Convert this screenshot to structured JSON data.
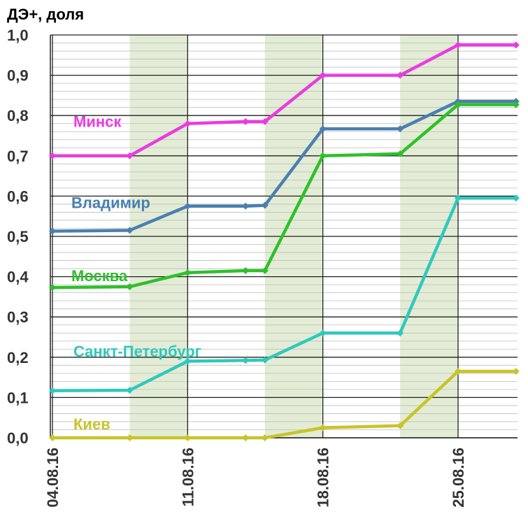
{
  "chart_data": {
    "type": "line",
    "ylabel": "ДЭ+, доля",
    "ylim": [
      0,
      1.0
    ],
    "y_ticks": [
      "0,0",
      "0,1",
      "0,2",
      "0,3",
      "0,4",
      "0,5",
      "0,6",
      "0,7",
      "0,8",
      "0,9",
      "1,0"
    ],
    "x_ticks": [
      "04.08.16",
      "11.08.16",
      "18.08.16",
      "25.08.16"
    ],
    "x": [
      "04.08.16",
      "08.08.16",
      "11.08.16",
      "14.08.16",
      "15.08.16",
      "18.08.16",
      "22.08.16",
      "25.08.16",
      "28.08.16"
    ],
    "shaded_periods": [
      [
        "08.08.16",
        "11.08.16"
      ],
      [
        "15.08.16",
        "18.08.16"
      ],
      [
        "22.08.16",
        "25.08.16"
      ]
    ],
    "grid": true,
    "series": [
      {
        "name": "Минск",
        "color": "#e83ce0",
        "values": [
          0.7,
          0.7,
          0.78,
          0.785,
          0.785,
          0.9,
          0.9,
          0.975,
          0.975
        ]
      },
      {
        "name": "Владимир",
        "color": "#4a7fb0",
        "values": [
          0.513,
          0.515,
          0.575,
          0.575,
          0.577,
          0.767,
          0.767,
          0.835,
          0.835
        ]
      },
      {
        "name": "Москва",
        "color": "#2ec02a",
        "values": [
          0.373,
          0.375,
          0.41,
          0.415,
          0.415,
          0.7,
          0.705,
          0.827,
          0.827
        ]
      },
      {
        "name": "Санкт-Петербург",
        "color": "#30c8bc",
        "values": [
          0.117,
          0.118,
          0.19,
          0.192,
          0.193,
          0.26,
          0.26,
          0.595,
          0.595
        ]
      },
      {
        "name": "Киев",
        "color": "#c8c42a",
        "values": [
          0.0,
          0.0,
          0.0,
          0.0,
          0.0,
          0.025,
          0.03,
          0.165,
          0.165
        ]
      }
    ]
  }
}
